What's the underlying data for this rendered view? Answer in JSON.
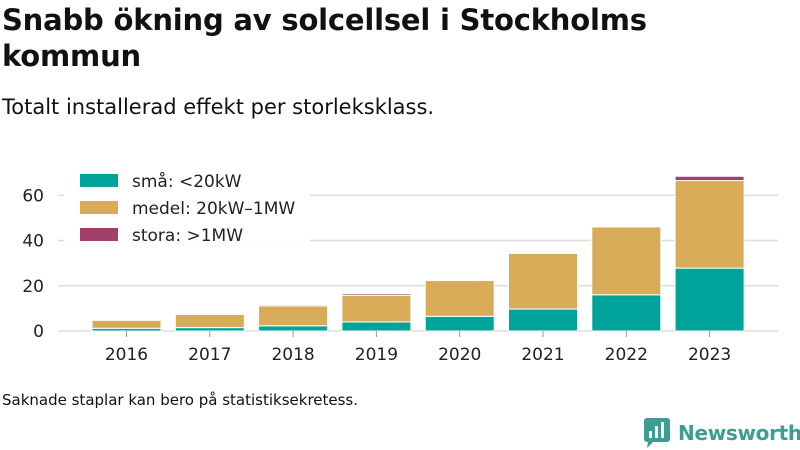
{
  "title": "Snabb ökning av solcellsel i Stockholms kommun",
  "subtitle": "Totalt installerad effekt per storleksklass.",
  "note": "Saknade staplar kan bero på statistiksekretess.",
  "brand": {
    "name": "Newsworthy",
    "color": "#3e9d92"
  },
  "chart_data": {
    "type": "bar",
    "stacked": true,
    "categories": [
      "2016",
      "2017",
      "2018",
      "2019",
      "2020",
      "2021",
      "2022",
      "2023"
    ],
    "series": [
      {
        "name": "små: <20kW",
        "color": "#00a39a",
        "values": [
          1.2,
          1.5,
          2.3,
          4.0,
          6.5,
          9.7,
          16.0,
          27.8
        ]
      },
      {
        "name": "medel: 20kW–1MW",
        "color": "#d8ab59",
        "values": [
          3.5,
          5.8,
          8.8,
          11.8,
          15.8,
          24.6,
          30.0,
          38.7
        ]
      },
      {
        "name": "stora: >1MW",
        "color": "#a23f6a",
        "values": [
          0,
          0,
          0.5,
          0.7,
          0,
          0,
          0,
          1.9
        ]
      }
    ],
    "yticks": [
      0,
      20,
      40,
      60
    ],
    "ylim": [
      0,
      70
    ],
    "grid": true,
    "legend": "top-left"
  }
}
